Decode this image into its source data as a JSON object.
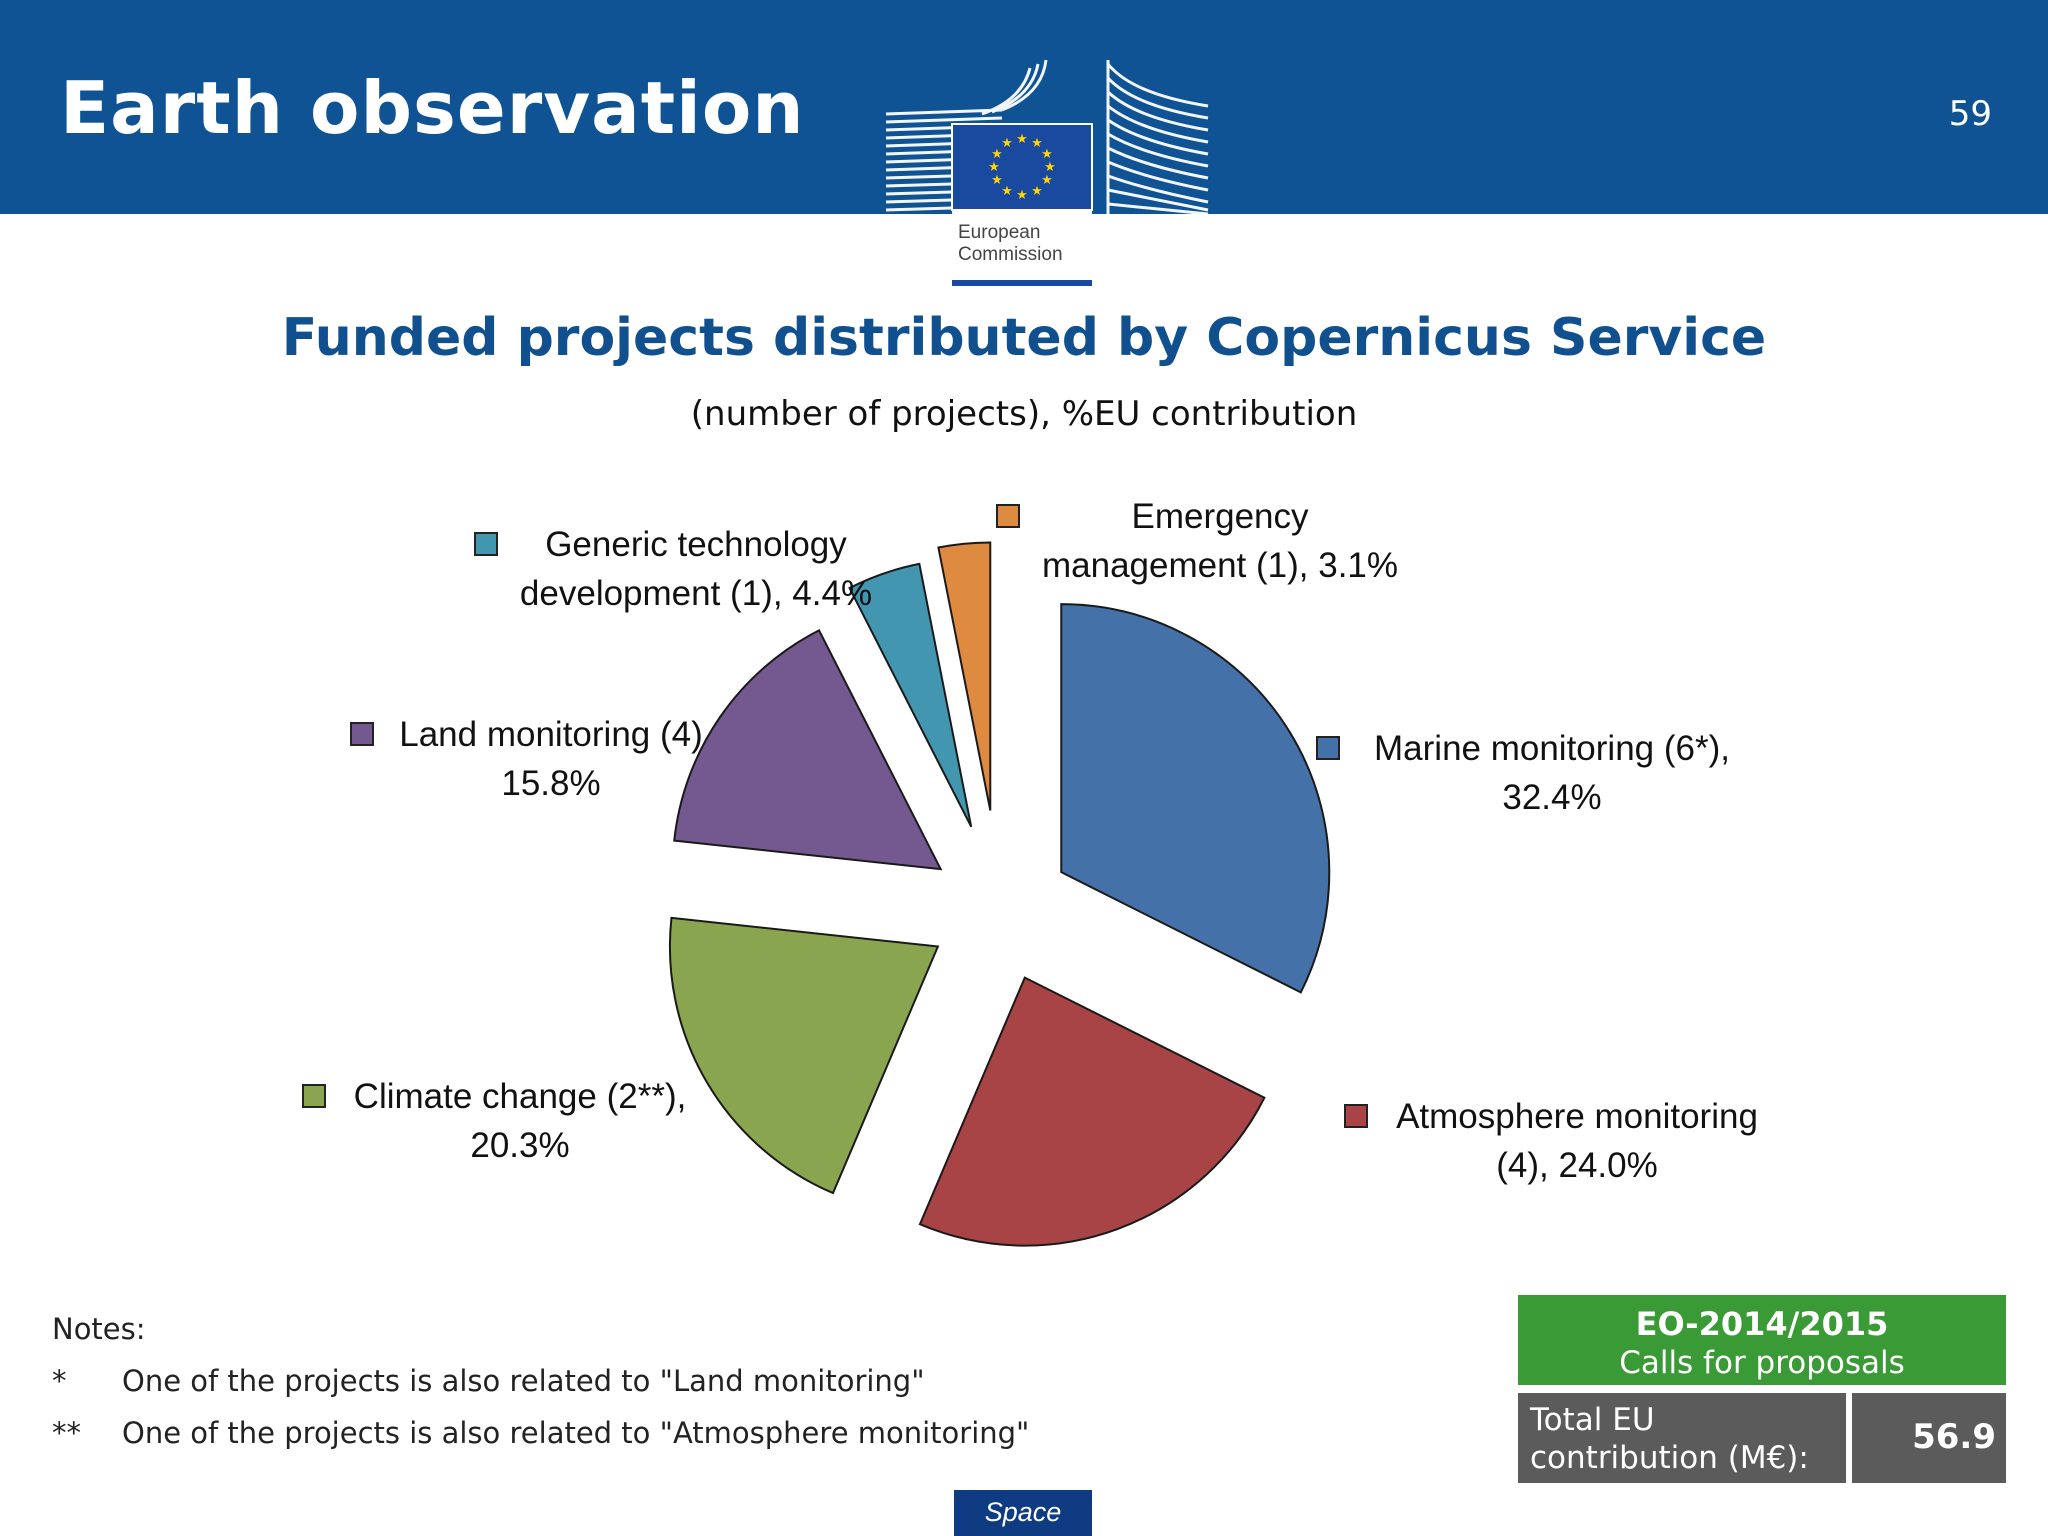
{
  "header": {
    "title": "Earth observation",
    "page_number": "59"
  },
  "logo": {
    "line1": "European",
    "line2": "Commission"
  },
  "colors": {
    "header_bg": "#0f5394",
    "marine": "#4472a8",
    "atmosphere": "#a84446",
    "climate": "#8aa550",
    "land": "#735990",
    "generic": "#4396b0",
    "emergency": "#de8a40",
    "calls_box": "#3a9a35",
    "total_box": "#5b5b5b"
  },
  "chart_data": {
    "type": "pie",
    "title": "Funded projects distributed by Copernicus Service",
    "subtitle": "(number of projects), %EU contribution",
    "slices": [
      {
        "key": "marine",
        "label_line1": "Marine monitoring (6*),",
        "label_line2": "32.4%",
        "projects": "6*",
        "value": 32.4,
        "color": "#4472a8"
      },
      {
        "key": "atmosphere",
        "label_line1": "Atmosphere monitoring",
        "label_line2": "(4), 24.0%",
        "projects": "4",
        "value": 24.0,
        "color": "#a84446"
      },
      {
        "key": "climate",
        "label_line1": "Climate change (2**),",
        "label_line2": "20.3%",
        "projects": "2**",
        "value": 20.3,
        "color": "#8aa550"
      },
      {
        "key": "land",
        "label_line1": "Land monitoring (4)",
        "label_line2": "15.8%",
        "projects": "4",
        "value": 15.8,
        "color": "#735990"
      },
      {
        "key": "generic",
        "label_line1": "Generic technology",
        "label_line2": "development (1), 4.4%",
        "projects": "1",
        "value": 4.4,
        "color": "#4396b0"
      },
      {
        "key": "emergency",
        "label_line1": "Emergency",
        "label_line2": "management (1), 3.1%",
        "projects": "1",
        "value": 3.1,
        "color": "#de8a40"
      }
    ],
    "legend": "labels-beside-slices"
  },
  "notes": {
    "heading": "Notes:",
    "items": [
      {
        "mark": "*",
        "text": "One of the projects is also related to \"Land monitoring\""
      },
      {
        "mark": "**",
        "text": "One of the projects is also related to \"Atmosphere monitoring\""
      }
    ]
  },
  "summary": {
    "call_id": "EO-2014/2015",
    "call_label": "Calls for proposals",
    "total_label_line1": "Total EU",
    "total_label_line2": "contribution (M€):",
    "total_value": "56.9"
  },
  "footer": {
    "tag": "Space"
  }
}
